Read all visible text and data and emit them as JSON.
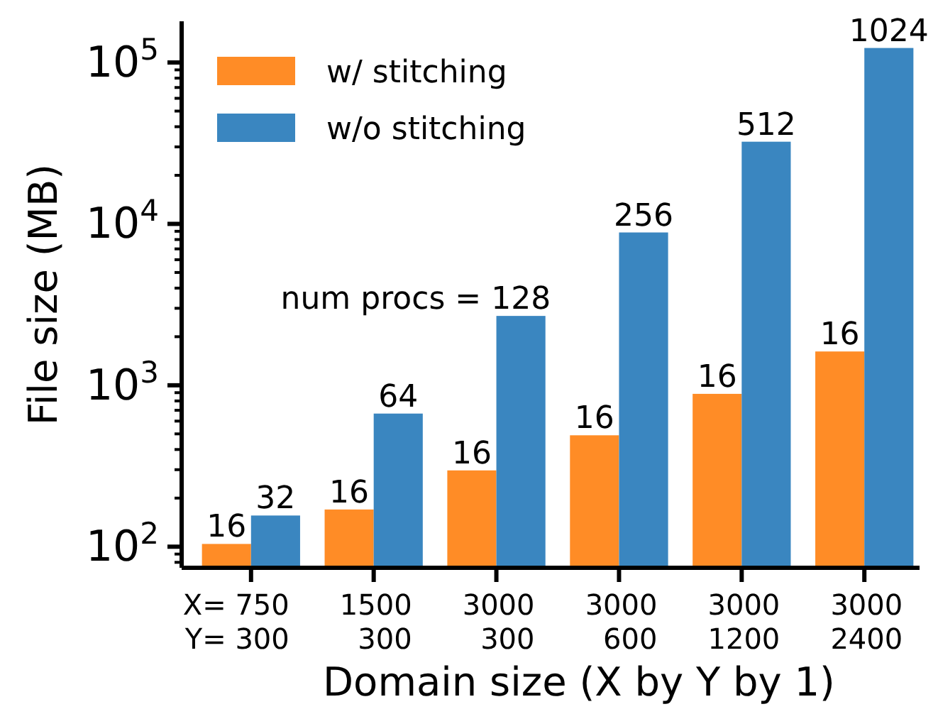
{
  "chart_data": {
    "type": "bar",
    "xlabel": "Domain size (X by Y by 1)",
    "ylabel": "File size (MB)",
    "categories": [
      "X= 750\nY= 300",
      "1500\n300",
      "3000\n300",
      "3000\n600",
      "3000\n1200",
      "3000\n2400"
    ],
    "series": [
      {
        "name": "w/ stitching",
        "color": "#ff8c26",
        "values": [
          104,
          170,
          297,
          490,
          885,
          1620
        ]
      },
      {
        "name": "w/o stitching",
        "color": "#3a86c0",
        "values": [
          156,
          668,
          2690,
          8850,
          32300,
          123000
        ]
      }
    ],
    "log": true,
    "ylim": [
      74,
      180000
    ],
    "yticks": [
      {
        "value": 80,
        "label": null
      },
      {
        "value": 90,
        "label": null
      },
      {
        "value": 100,
        "label": "10$^{2}$"
      },
      {
        "value": 200,
        "label": null
      },
      {
        "value": 300,
        "label": null
      },
      {
        "value": 400,
        "label": null
      },
      {
        "value": 500,
        "label": null
      },
      {
        "value": 600,
        "label": null
      },
      {
        "value": 700,
        "label": null
      },
      {
        "value": 800,
        "label": null
      },
      {
        "value": 900,
        "label": null
      },
      {
        "value": 1000,
        "label": "10$^{3}$"
      },
      {
        "value": 2000,
        "label": null
      },
      {
        "value": 3000,
        "label": null
      },
      {
        "value": 4000,
        "label": null
      },
      {
        "value": 5000,
        "label": null
      },
      {
        "value": 6000,
        "label": null
      },
      {
        "value": 7000,
        "label": null
      },
      {
        "value": 8000,
        "label": null
      },
      {
        "value": 9000,
        "label": null
      },
      {
        "value": 10000,
        "label": "10$^{4}$"
      },
      {
        "value": 20000,
        "label": null
      },
      {
        "value": 30000,
        "label": null
      },
      {
        "value": 40000,
        "label": null
      },
      {
        "value": 50000,
        "label": null
      },
      {
        "value": 60000,
        "label": null
      },
      {
        "value": 70000,
        "label": null
      },
      {
        "value": 80000,
        "label": null
      },
      {
        "value": 90000,
        "label": null
      },
      {
        "value": 100000,
        "label": "10$^{5}$"
      }
    ],
    "annotations": [
      {
        "text": "16",
        "x": "X= 750\nY= 300",
        "y": 104
      },
      {
        "text": "32",
        "x": "X= 750\nY= 300",
        "y": 156
      },
      {
        "text": "16",
        "x": "1500\n300",
        "y": 170
      },
      {
        "text": "64",
        "x": "1500\n300",
        "y": 668
      },
      {
        "text": "16",
        "x": "3000\n300",
        "y": 297
      },
      {
        "text": "num procs = 128",
        "x": "3000\n300",
        "y": 2690
      },
      {
        "text": "16",
        "x": "3000\n600",
        "y": 490
      },
      {
        "text": "256",
        "x": "3000\n600",
        "y": 8850
      },
      {
        "text": "16",
        "x": "3000\n1200",
        "y": 885
      },
      {
        "text": "512",
        "x": "3000\n1200",
        "y": 32300
      },
      {
        "text": "16",
        "x": "3000\n2400",
        "y": 1620
      },
      {
        "text": "1024",
        "x": "3000\n2400",
        "y": 123000
      }
    ],
    "legend": "top left",
    "grid": false
  }
}
